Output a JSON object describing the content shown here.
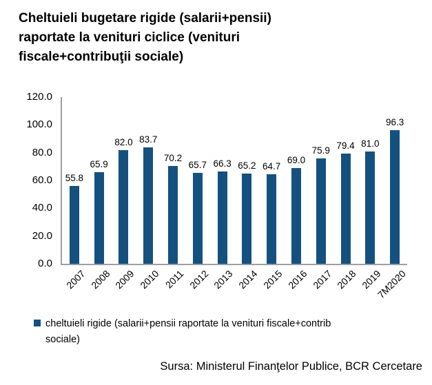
{
  "title": "Cheltuieli bugetare rigide (salarii+pensii)\nraportate la venituri ciclice (venituri\nfiscale+contribuţii sociale)",
  "chart_data": {
    "type": "bar",
    "title": "Cheltuieli bugetare rigide (salarii+pensii) raportate la venituri ciclice (venituri fiscale+contribuţii sociale)",
    "categories": [
      "2007",
      "2008",
      "2009",
      "2010",
      "2011",
      "2012",
      "2013",
      "2014",
      "2015",
      "2016",
      "2017",
      "2018",
      "2019",
      "7M2020"
    ],
    "values": [
      55.8,
      65.9,
      82.0,
      83.7,
      70.2,
      65.7,
      66.3,
      65.2,
      64.7,
      69.0,
      75.9,
      79.4,
      81.0,
      96.3
    ],
    "value_labels": [
      "55.8",
      "65.9",
      "82.0",
      "83.7",
      "70.2",
      "65.7",
      "66.3",
      "65.2",
      "64.7",
      "69.0",
      "75.9",
      "79.4",
      "81.0",
      "96.3"
    ],
    "xlabel": "",
    "ylabel": "",
    "ylim": [
      0,
      120
    ],
    "ytick_labels_top_to_bottom": [
      "120.0",
      "100.0",
      "80.0",
      "60.0",
      "40.0",
      "20.0",
      "0.0"
    ],
    "grid": false,
    "data_labels": true,
    "legend_position": "bottom",
    "legend_entries": [
      "cheltuieli rigide (salarii+pensii raportate la venituri fiscale+contrib sociale)"
    ],
    "bar_color": "#14517F",
    "axis_color": "#9e9e9e"
  },
  "legend": {
    "label": "cheltuieli rigide (salarii+pensii raportate la venituri fiscale+contrib\nsociale)",
    "marker_color": "#14517F"
  },
  "source": "Sursa: Ministerul Finanţelor Publice, BCR Cercetare",
  "colors": {
    "bar": "#14517F",
    "axis": "#9e9e9e",
    "text": "#000000",
    "background": "#ffffff"
  }
}
